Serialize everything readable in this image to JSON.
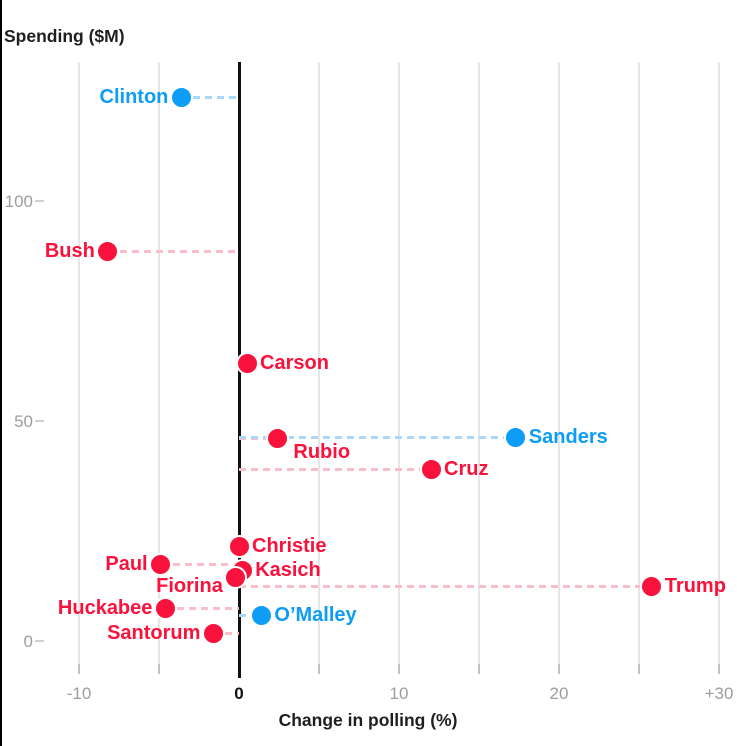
{
  "y_axis": {
    "title": "Spending ($M)",
    "ticks": [
      {
        "value": 100,
        "label": "100"
      },
      {
        "value": 50,
        "label": "50"
      },
      {
        "value": 0,
        "label": "0"
      }
    ]
  },
  "x_axis": {
    "title": "Change in polling (%)",
    "gridline_values": [
      -10,
      -5,
      0,
      5,
      10,
      15,
      20,
      25,
      30
    ],
    "ticks": [
      {
        "value": -10,
        "label": "-10",
        "emphasis": false
      },
      {
        "value": 0,
        "label": "0",
        "emphasis": true
      },
      {
        "value": 10,
        "label": "10",
        "emphasis": false
      },
      {
        "value": 20,
        "label": "20",
        "emphasis": false
      },
      {
        "value": 30,
        "label": "+30",
        "emphasis": false
      }
    ]
  },
  "colors": {
    "republican": "#f9123b",
    "democrat": "#0e9df6",
    "republican_dash": "#f8bfca",
    "democrat_dash": "#aad7f8",
    "gridline": "#e6e6e6",
    "axis_line": "#111111",
    "tick_text": "#9d9d9d",
    "dark_text": "#1f1f1f"
  },
  "chart_data": {
    "type": "scatter",
    "title": "",
    "xlabel": "Change in polling (%)",
    "ylabel": "Spending ($M)",
    "xlim": [
      -12.5,
      31.2
    ],
    "ylim": [
      0,
      132
    ],
    "grid": "vertical-only",
    "legend": "none",
    "note": "Dots connected to the zero line by dashed leaders; blue = Democrats, red = Republicans",
    "points": [
      {
        "name": "Clinton",
        "party": "D",
        "x": -3.6,
        "y": 123.5,
        "label_side": "left"
      },
      {
        "name": "Bush",
        "party": "R",
        "x": -8.2,
        "y": 88.5,
        "label_side": "left"
      },
      {
        "name": "Carson",
        "party": "R",
        "x": 0.5,
        "y": 63,
        "label_side": "right"
      },
      {
        "name": "Rubio",
        "party": "R",
        "x": 2.4,
        "y": 46,
        "label_side": "right",
        "label_dx": 3,
        "label_dy": 14
      },
      {
        "name": "Sanders",
        "party": "D",
        "x": 17.3,
        "y": 46.3,
        "label_side": "right"
      },
      {
        "name": "Cruz",
        "party": "R",
        "x": 12,
        "y": 39,
        "label_side": "right"
      },
      {
        "name": "Christie",
        "party": "R",
        "x": 0,
        "y": 21.5,
        "label_side": "right"
      },
      {
        "name": "Paul",
        "party": "R",
        "x": -4.9,
        "y": 17.5,
        "label_side": "left"
      },
      {
        "name": "Kasich",
        "party": "R",
        "x": 0.2,
        "y": 16,
        "label_side": "right"
      },
      {
        "name": "Fiorina",
        "party": "R",
        "x": -0.2,
        "y": 14.5,
        "label_side": "left",
        "label_dy": 9
      },
      {
        "name": "Trump",
        "party": "R",
        "x": 25.8,
        "y": 12.3,
        "label_side": "right"
      },
      {
        "name": "Huckabee",
        "party": "R",
        "x": -4.6,
        "y": 7.3,
        "label_side": "left"
      },
      {
        "name": "O’Malley",
        "party": "D",
        "x": 1.4,
        "y": 5.9,
        "label_side": "right"
      },
      {
        "name": "Santorum",
        "party": "R",
        "x": -1.6,
        "y": 1.6,
        "label_side": "left"
      }
    ]
  }
}
